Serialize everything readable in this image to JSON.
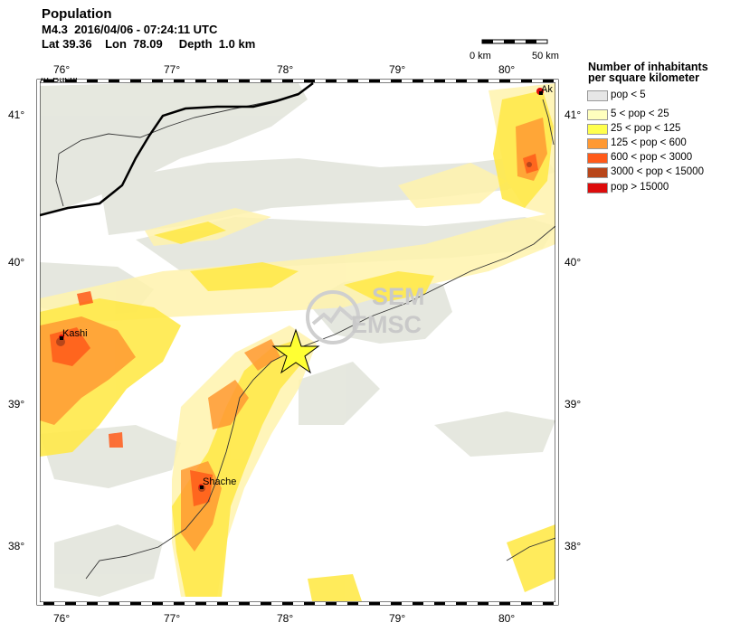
{
  "header": {
    "title": "Population",
    "line1": "M4.3  2016/04/06 - 07:24:11 UTC",
    "line2": "Lat 39.36    Lon  78.09     Depth  1.0 km"
  },
  "map": {
    "lon_min": 75.8,
    "lon_max": 80.45,
    "lat_min": 37.6,
    "lat_max": 41.2,
    "lon_ticks": [
      "76°",
      "77°",
      "78°",
      "79°",
      "80°"
    ],
    "lat_ticks": [
      "38°",
      "39°",
      "40°",
      "41°"
    ],
    "epicenter": {
      "lat": 39.36,
      "lon": 78.09,
      "marker": "star",
      "color": "#ffff33"
    },
    "cities": [
      {
        "name": "Kashi",
        "lat": 39.47,
        "lon": 75.99
      },
      {
        "name": "Shache",
        "lat": 38.42,
        "lon": 77.24
      },
      {
        "name": "Ak",
        "lat": 41.17,
        "lon": 80.27
      },
      {
        "name": "At-Bashi",
        "lat": 41.18,
        "lon": 75.82
      }
    ],
    "scale_bar": {
      "left_label": "0 km",
      "right_label": "50 km"
    }
  },
  "legend": {
    "title_line1": "Number of inhabitants",
    "title_line2": "per square kilometer",
    "items": [
      {
        "label": "pop < 5",
        "color": "#e6e6e6"
      },
      {
        "label": "5 < pop < 25",
        "color": "#ffffbe"
      },
      {
        "label": "25 < pop < 125",
        "color": "#ffff4d"
      },
      {
        "label": "125 < pop < 600",
        "color": "#ff9933"
      },
      {
        "label": "600 < pop < 3000",
        "color": "#ff5a1a"
      },
      {
        "label": "3000 < pop < 15000",
        "color": "#b8461a"
      },
      {
        "label": "pop > 15000",
        "color": "#dd0b0b"
      }
    ]
  },
  "watermark": {
    "line1": "SEM",
    "line2": "EMSC"
  }
}
